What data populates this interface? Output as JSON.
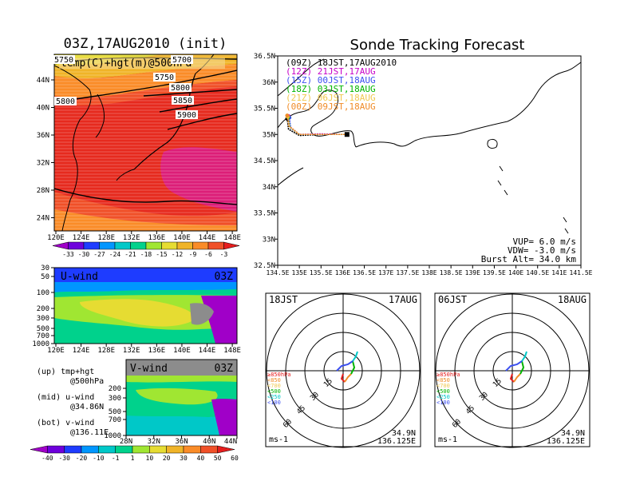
{
  "left_map": {
    "title": "03Z,17AUG2010 (init)",
    "subtitle": "temp(C)+hgt(m)@500hPa",
    "x_ticks": [
      "120E",
      "124E",
      "128E",
      "132E",
      "136E",
      "140E",
      "144E",
      "148E"
    ],
    "y_ticks": [
      "44N",
      "40N",
      "36N",
      "32N",
      "28N",
      "24N"
    ],
    "contour_labels": [
      "5750",
      "5700",
      "5750",
      "5800",
      "5850",
      "5900",
      "5800"
    ],
    "colorbar_labels": [
      "-33",
      "-30",
      "-27",
      "-24",
      "-21",
      "-18",
      "-15",
      "-12",
      "-9",
      "-6",
      "-3"
    ],
    "colorbar_colors": [
      "#a000c8",
      "#6e00dc",
      "#1e3cff",
      "#0096ff",
      "#00c8c8",
      "#00d28c",
      "#a0e632",
      "#e6dc32",
      "#f0b428",
      "#fa8c28",
      "#f05028",
      "#e61e1e"
    ]
  },
  "u_wind": {
    "title": "U-wind",
    "time": "03Z",
    "y_ticks": [
      "30",
      "50",
      "100",
      "200",
      "300",
      "500",
      "700",
      "1000"
    ],
    "x_ticks": [
      "120E",
      "124E",
      "128E",
      "132E",
      "136E",
      "140E",
      "144E",
      "148E"
    ]
  },
  "v_wind": {
    "title": "V-wind",
    "time": "03Z",
    "y_ticks": [
      "200",
      "300",
      "500",
      "700",
      "1000"
    ],
    "x_ticks": [
      "28N",
      "32N",
      "36N",
      "40N",
      "44N"
    ]
  },
  "notes": {
    "up_line1": "(up) tmp+hgt",
    "up_line2": "@500hPa",
    "mid_line1": "(mid) u-wind",
    "mid_line2": "@34.86N",
    "bot_line1": "(bot) v-wind",
    "bot_line2": "@136.11E"
  },
  "wind_colorbar": {
    "labels": [
      "-40",
      "-30",
      "-20",
      "-10",
      "-1",
      "1",
      "10",
      "20",
      "30",
      "40",
      "50",
      "60"
    ],
    "colors": [
      "#a000c8",
      "#6e00dc",
      "#1e3cff",
      "#0096ff",
      "#00c8c8",
      "#00d28c",
      "#a0e632",
      "#e6dc32",
      "#f0b428",
      "#fa8c28",
      "#f05028",
      "#e61e1e"
    ]
  },
  "tracking": {
    "title": "Sonde Tracking Forecast",
    "y_ticks": [
      "36.5N",
      "36N",
      "35.5N",
      "35N",
      "34.5N",
      "34N",
      "33.5N",
      "33N",
      "32.5N"
    ],
    "x_ticks": [
      "134.5E",
      "135E",
      "135.5E",
      "136E",
      "136.5E",
      "137E",
      "137.5E",
      "138E",
      "138.5E",
      "139E",
      "139.5E",
      "140E",
      "140.5E",
      "141E",
      "141.5E"
    ],
    "legend": [
      {
        "label": "(09Z)  18JST,17AUG2010",
        "color": "#000000"
      },
      {
        "label": "(12Z)  21JST,17AUG",
        "color": "#c800c8"
      },
      {
        "label": "(15Z)  00JST,18AUG",
        "color": "#3c50f0"
      },
      {
        "label": "(18Z)  03JST,18AUG",
        "color": "#00b400"
      },
      {
        "label": "(21Z)  06JST,18AUG",
        "color": "#f0c850"
      },
      {
        "label": "(00Z)  09JST,18AUG",
        "color": "#f08c28"
      }
    ],
    "params": [
      "VUP= 6.0 m/s",
      "VDW= -3.0 m/s",
      "Burst Alt= 34.0 km"
    ]
  },
  "hodo_left": {
    "time_label": "18JST",
    "date_label": "17AUG",
    "ring_labels": [
      "15",
      "30",
      "45",
      "60"
    ],
    "level_labels": [
      "≥850hPa",
      "<850",
      "<700",
      "<500",
      "<250",
      "<100"
    ],
    "level_colors": [
      "#e61e1e",
      "#f08c28",
      "#f0c850",
      "#00b400",
      "#00c8c8",
      "#3c50f0"
    ],
    "unit": "ms-1",
    "lat": "34.9N",
    "lon": "136.125E"
  },
  "hodo_right": {
    "time_label": "06JST",
    "date_label": "18AUG",
    "ring_labels": [
      "15",
      "30",
      "45",
      "60"
    ],
    "level_labels": [
      "≥850hPa",
      "<850",
      "<700",
      "<500",
      "<250",
      "<100"
    ],
    "level_colors": [
      "#e61e1e",
      "#f08c28",
      "#f0c850",
      "#00b400",
      "#00c8c8",
      "#3c50f0"
    ],
    "unit": "ms-1",
    "lat": "34.9N",
    "lon": "136.125E"
  },
  "chart_data": [
    {
      "type": "heatmap",
      "title": "03Z,17AUG2010 (init)",
      "subtitle": "temp(C)+hgt(m)@500hPa",
      "xlim": [
        "120E",
        "149E"
      ],
      "ylim": [
        "22N",
        "47N"
      ],
      "contours": [
        5700,
        5750,
        5800,
        5850,
        5900
      ]
    },
    {
      "type": "heatmap",
      "title": "U-wind",
      "xlim": [
        "120E",
        "149E"
      ],
      "ylim": [
        1000,
        30
      ]
    },
    {
      "type": "heatmap",
      "title": "V-wind",
      "xlim": [
        "28N",
        "44N"
      ],
      "ylim": [
        1000,
        150
      ]
    },
    {
      "type": "line",
      "title": "Sonde Tracking Forecast",
      "xlim": [
        134.5,
        141.5
      ],
      "ylim": [
        32.5,
        36.5
      ],
      "series": [
        {
          "name": "(09Z)  18JST,17AUG2010",
          "x": [
            136.1,
            135.95,
            135.5,
            135.0,
            134.75,
            134.72
          ],
          "y": [
            35.0,
            35.0,
            35.0,
            34.98,
            35.1,
            35.3
          ]
        },
        {
          "name": "(12Z)  21JST,17AUG",
          "x": [
            136.1,
            135.95,
            135.5,
            135.0,
            134.78,
            134.75
          ],
          "y": [
            35.0,
            35.0,
            35.01,
            35.0,
            35.15,
            35.35
          ]
        },
        {
          "name": "(15Z)  00JST,18AUG",
          "x": [
            136.1,
            135.95,
            135.5,
            135.0,
            134.8,
            134.77
          ],
          "y": [
            35.0,
            35.0,
            35.0,
            35.0,
            35.12,
            35.32
          ]
        },
        {
          "name": "(18Z)  03JST,18AUG",
          "x": [
            136.1,
            135.95,
            135.5,
            135.0,
            134.78,
            134.74
          ],
          "y": [
            35.0,
            35.0,
            35.0,
            35.0,
            35.14,
            35.33
          ]
        },
        {
          "name": "(21Z)  06JST,18AUG",
          "x": [
            136.1,
            135.95,
            135.5,
            135.0,
            134.77,
            134.73
          ],
          "y": [
            35.0,
            35.0,
            35.0,
            35.0,
            35.15,
            35.34
          ]
        },
        {
          "name": "(00Z)  09JST,18AUG",
          "x": [
            136.1,
            135.95,
            135.5,
            135.0,
            134.76,
            134.72
          ],
          "y": [
            35.0,
            35.0,
            35.0,
            35.0,
            35.16,
            35.36
          ]
        }
      ]
    },
    {
      "type": "line",
      "title": "18JST 17AUG",
      "rings": [
        15,
        30,
        45,
        60
      ]
    },
    {
      "type": "line",
      "title": "06JST 18AUG",
      "rings": [
        15,
        30,
        45,
        60
      ]
    }
  ]
}
